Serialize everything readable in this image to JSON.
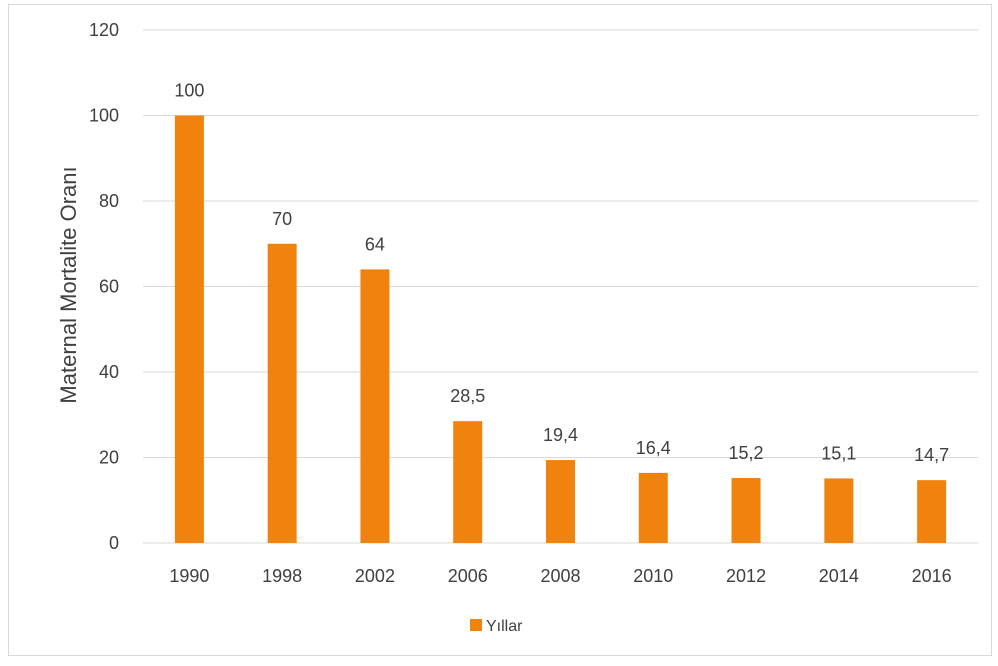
{
  "chart_data": {
    "type": "bar",
    "categories": [
      "1990",
      "1998",
      "2002",
      "2006",
      "2008",
      "2010",
      "2012",
      "2014",
      "2016"
    ],
    "series": [
      {
        "name": "Yıllar",
        "values": [
          100,
          70,
          64,
          28.5,
          19.4,
          16.4,
          15.2,
          15.1,
          14.7
        ],
        "data_labels": [
          "100",
          "70",
          "64",
          "28,5",
          "19,4",
          "16,4",
          "15,2",
          "15,1",
          "14,7"
        ]
      }
    ],
    "title": "",
    "xlabel": "",
    "ylabel": "Maternal Mortalite Oranı",
    "ylim": [
      0,
      120
    ],
    "yticks": [
      0,
      20,
      40,
      60,
      80,
      100,
      120
    ],
    "grid": true,
    "legend_position": "bottom",
    "colors": {
      "bar": "#f0820e",
      "grid": "#d9d9d9",
      "text": "#404040"
    }
  }
}
